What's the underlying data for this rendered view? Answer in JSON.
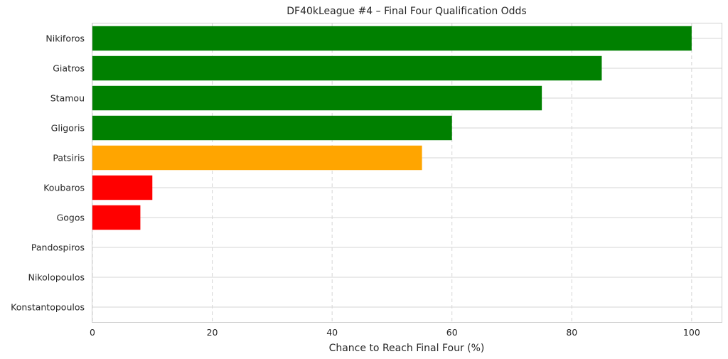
{
  "chart_data": {
    "type": "bar",
    "orientation": "horizontal",
    "title": "DF40kLeague #4 – Final Four Qualification Odds",
    "xlabel": "Chance to Reach Final Four (%)",
    "ylabel": "",
    "xlim": [
      0,
      105
    ],
    "xticks": [
      0,
      20,
      40,
      60,
      80,
      100
    ],
    "grid": true,
    "categories": [
      "Nikiforos",
      "Giatros",
      "Stamou",
      "Gligoris",
      "Patsiris",
      "Koubaros",
      "Gogos",
      "Pandospiros",
      "Nikolopoulos",
      "Konstantopoulos"
    ],
    "values": [
      100,
      85,
      75,
      60,
      55,
      10,
      8,
      0,
      0,
      0
    ],
    "colors": [
      "#008000",
      "#008000",
      "#008000",
      "#008000",
      "#FFA500",
      "#FF0000",
      "#FF0000",
      "#FF0000",
      "#FF0000",
      "#FF0000"
    ]
  }
}
